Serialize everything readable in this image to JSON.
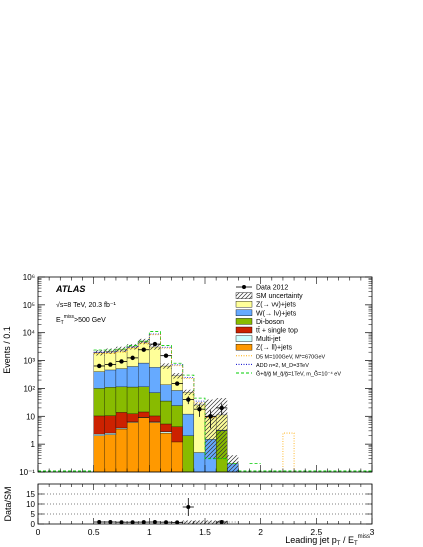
{
  "chart_data": [
    {
      "type": "bar",
      "subtype": "stacked-histogram",
      "title": "",
      "ylabel": "Events / 0.1",
      "yscale": "log",
      "ylim": [
        0.1,
        1000000
      ],
      "xlim": [
        0,
        3
      ],
      "y_ticks": [
        "10⁻¹",
        "1",
        "10",
        "10²",
        "10³",
        "10⁴",
        "10⁵",
        "10⁶"
      ],
      "annotations": {
        "experiment": "ATLAS",
        "energy": "√s=8 TeV, 20.3 fb⁻¹",
        "cut": "E_T^miss>500 GeV"
      },
      "bin_edges": [
        0.5,
        0.6,
        0.7,
        0.8,
        0.9,
        1.0,
        1.1,
        1.2,
        1.3,
        1.4,
        1.5,
        1.6,
        1.7,
        1.8
      ],
      "series": [
        {
          "name": "Z(→ ll)+jets",
          "color": "#ff9900",
          "values": [
            2,
            2.2,
            3.5,
            6,
            9,
            6,
            2.5,
            1.2,
            0,
            0,
            0,
            0,
            0
          ]
        },
        {
          "name": "Multi-jet",
          "color": "#ccffff",
          "values": [
            0.3,
            0.3,
            0.3,
            0.3,
            0.3,
            0.3,
            0.3,
            0,
            0,
            0,
            0,
            0,
            0
          ]
        },
        {
          "name": "tt̄ + single top",
          "color": "#cc2200",
          "values": [
            8,
            8,
            10,
            6,
            5,
            4,
            2.5,
            3,
            0,
            0,
            0,
            0,
            0
          ]
        },
        {
          "name": "Di-boson",
          "color": "#88bb00",
          "values": [
            90,
            100,
            100,
            100,
            100,
            60,
            30,
            20,
            2,
            0,
            0,
            3,
            0
          ]
        },
        {
          "name": "W(→ lν)+jets",
          "color": "#66aaff",
          "values": [
            300,
            350,
            400,
            500,
            700,
            500,
            100,
            60,
            10,
            0.5,
            1.5,
            0.2,
            0.2
          ]
        },
        {
          "name": "Z(→ νν)+jets",
          "color": "#ffff99",
          "values": [
            1500,
            1700,
            2000,
            2500,
            4000,
            2500,
            500,
            200,
            60,
            25,
            8,
            8,
            0
          ]
        }
      ],
      "data_points": {
        "name": "Data 2012",
        "x": [
          0.55,
          0.65,
          0.75,
          0.85,
          0.95,
          1.05,
          1.15,
          1.25,
          1.35,
          1.45,
          1.55,
          1.65
        ],
        "y": [
          640,
          720,
          930,
          1250,
          2450,
          3900,
          1500,
          150,
          40,
          18,
          10,
          20
        ]
      },
      "signals": [
        {
          "name": "D5 M=100GeV, M*=670GeV",
          "color": "#ffaa00",
          "dash": "dotted"
        },
        {
          "name": "ADD n=2, M_D=3TeV",
          "color": "#0000cc",
          "dash": "dotted"
        },
        {
          "name": "G̃+q̃/g̃ M_q̃/g̃=1TeV, m_G̃=10⁻⁴ eV",
          "color": "#00cc00",
          "dash": "dashed"
        }
      ],
      "legend": [
        "Data 2012",
        "SM uncertainty",
        "Z(→ νν)+jets",
        "W(→ lν)+jets",
        "Di-boson",
        "tt̄ + single top",
        "Multi-jet",
        "Z(→ ll)+jets",
        "D5 M=100GeV, M*=670GeV",
        "ADD n=2, M_D=3TeV",
        "G̃+q̃/g̃ M_q̃/g̃=1TeV, m_G̃=10⁻⁴ eV"
      ],
      "legend_placement": "top-right"
    },
    {
      "type": "scatter",
      "ylabel": "Data/SM",
      "xlabel": "Leading jet p_T / E_T^miss",
      "xlim": [
        0,
        3
      ],
      "ylim": [
        0,
        20
      ],
      "y_ticks": [
        "0",
        "5",
        "10",
        "15"
      ],
      "x_ticks": [
        "0",
        "0.5",
        "1",
        "1.5",
        "2",
        "2.5",
        "3"
      ],
      "gridlines_y": [
        5,
        10,
        15
      ],
      "x": [
        0.55,
        0.65,
        0.75,
        0.85,
        0.95,
        1.05,
        1.15,
        1.25,
        1.35,
        1.65
      ],
      "y": [
        1.0,
        1.0,
        0.9,
        0.9,
        0.95,
        1.0,
        0.9,
        0.8,
        8.5,
        1.0
      ]
    }
  ]
}
